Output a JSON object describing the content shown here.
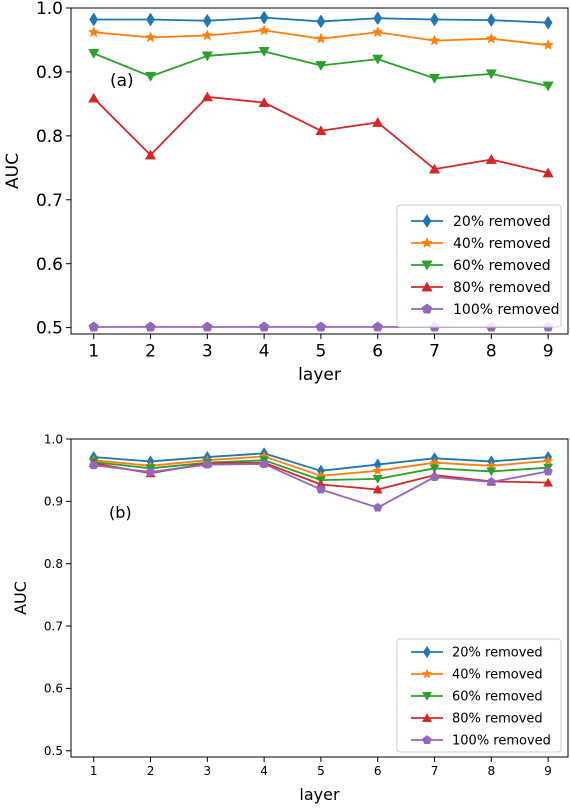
{
  "chart_data": [
    {
      "type": "line",
      "panel_label": "(a)",
      "xlabel": "layer",
      "ylabel": "AUC",
      "x": [
        1,
        2,
        3,
        4,
        5,
        6,
        7,
        8,
        9
      ],
      "xlim": [
        0.6,
        9.35
      ],
      "ylim": [
        0.49,
        1.0
      ],
      "yticks": [
        "0.5",
        "0.6",
        "0.7",
        "0.8",
        "0.9",
        "1.0"
      ],
      "ytick_values": [
        0.5,
        0.6,
        0.7,
        0.8,
        0.9,
        1.0
      ],
      "legend_position": "lower right",
      "series": [
        {
          "name": "20% removed",
          "color": "#1f77b4",
          "marker": "diamond",
          "values": [
            0.982,
            0.982,
            0.98,
            0.985,
            0.979,
            0.984,
            0.982,
            0.981,
            0.977
          ]
        },
        {
          "name": "40% removed",
          "color": "#ff7f0e",
          "marker": "star",
          "values": [
            0.962,
            0.954,
            0.957,
            0.965,
            0.952,
            0.962,
            0.949,
            0.952,
            0.942
          ]
        },
        {
          "name": "60% removed",
          "color": "#2ca02c",
          "marker": "triangle-down",
          "values": [
            0.929,
            0.893,
            0.925,
            0.932,
            0.91,
            0.92,
            0.89,
            0.897,
            0.878
          ]
        },
        {
          "name": "80% removed",
          "color": "#d62728",
          "marker": "triangle-up",
          "values": [
            0.859,
            0.77,
            0.861,
            0.852,
            0.808,
            0.821,
            0.748,
            0.763,
            0.742
          ]
        },
        {
          "name": "100% removed",
          "color": "#9467bd",
          "marker": "pentagon",
          "values": [
            0.501,
            0.501,
            0.501,
            0.501,
            0.501,
            0.501,
            0.501,
            0.501,
            0.501
          ]
        }
      ]
    },
    {
      "type": "line",
      "panel_label": "(b)",
      "xlabel": "layer",
      "ylabel": "AUC",
      "x": [
        1,
        2,
        3,
        4,
        5,
        6,
        7,
        8,
        9
      ],
      "xlim": [
        0.6,
        9.35
      ],
      "ylim": [
        0.49,
        1.0
      ],
      "yticks": [
        "0.5",
        "0.6",
        "0.7",
        "0.8",
        "0.9",
        "1.0"
      ],
      "ytick_values": [
        0.5,
        0.6,
        0.7,
        0.8,
        0.9,
        1.0
      ],
      "legend_position": "lower right",
      "series": [
        {
          "name": "20% removed",
          "color": "#1f77b4",
          "marker": "diamond",
          "values": [
            0.971,
            0.964,
            0.971,
            0.977,
            0.949,
            0.959,
            0.969,
            0.964,
            0.971
          ]
        },
        {
          "name": "40% removed",
          "color": "#ff7f0e",
          "marker": "star",
          "values": [
            0.966,
            0.957,
            0.966,
            0.972,
            0.941,
            0.949,
            0.962,
            0.957,
            0.965
          ]
        },
        {
          "name": "60% removed",
          "color": "#2ca02c",
          "marker": "triangle-down",
          "values": [
            0.963,
            0.953,
            0.962,
            0.966,
            0.934,
            0.936,
            0.953,
            0.948,
            0.954
          ]
        },
        {
          "name": "80% removed",
          "color": "#d62728",
          "marker": "triangle-up",
          "values": [
            0.961,
            0.945,
            0.961,
            0.962,
            0.927,
            0.919,
            0.942,
            0.932,
            0.93
          ]
        },
        {
          "name": "100% removed",
          "color": "#9467bd",
          "marker": "pentagon",
          "values": [
            0.958,
            0.947,
            0.959,
            0.96,
            0.919,
            0.89,
            0.939,
            0.931,
            0.948
          ]
        }
      ]
    }
  ]
}
